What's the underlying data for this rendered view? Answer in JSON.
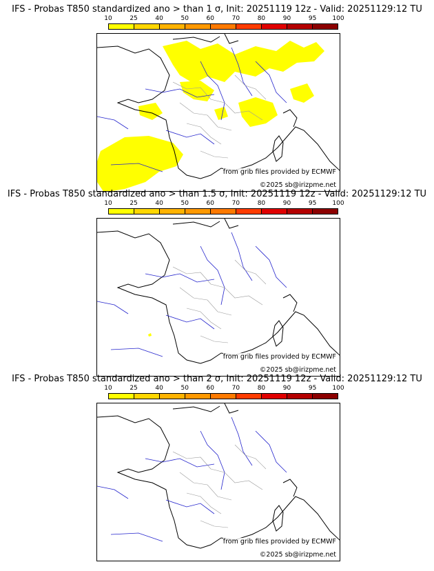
{
  "colorbar": {
    "ticks": [
      "10",
      "25",
      "40",
      "50",
      "60",
      "70",
      "80",
      "90",
      "95",
      "100"
    ],
    "colors": [
      "#ffff00",
      "#ffd700",
      "#ffb300",
      "#ff9900",
      "#ff7a00",
      "#ff3c00",
      "#e00000",
      "#b40000",
      "#8c0000",
      "#5a0000"
    ]
  },
  "panels": [
    {
      "title": "IFS - Probas T850  standardized ano > than 1 σ, Init: 20251119 12z - Valid: 20251129:12 TU"
    },
    {
      "title": "IFS - Probas T850  standardized ano > than 1.5 σ, Init: 20251119 12z - Valid: 20251129:12 TU"
    },
    {
      "title": "IFS - Probas T850  standardized ano > than 2 σ, Init: 20251119 12z - Valid: 20251129:12 TU"
    }
  ],
  "credits": {
    "source": "from grib files provided by ECMWF",
    "copyright": "©2025 sb@irizpme.net"
  },
  "map_colors": {
    "coast": "#000000",
    "rivers": "#2222cc",
    "borders": "#9a9a9a",
    "probability_fill": "#ffff00"
  }
}
